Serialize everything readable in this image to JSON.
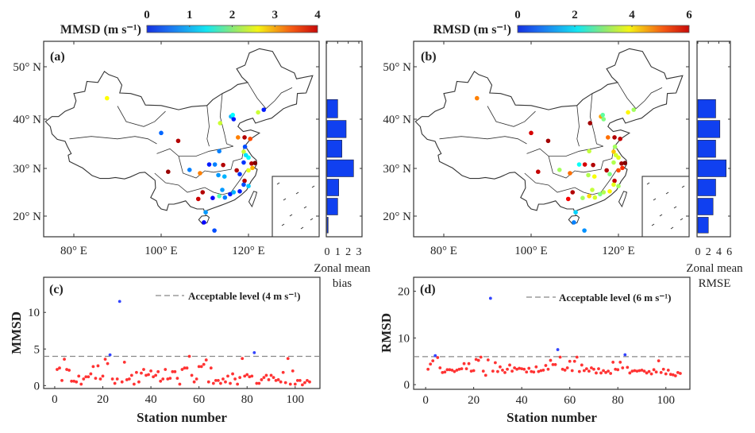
{
  "colors": {
    "outline": "#333333",
    "bar": "#1040f0",
    "below": "#ff3333",
    "above": "#3344ff",
    "threshold": "#888888"
  },
  "panels": {
    "a": {
      "label": "(a)",
      "colorbar_title": "MMSD (m s⁻¹)",
      "zonal_label1": "Zonal mean",
      "zonal_label2": "bias"
    },
    "b": {
      "label": "(b)",
      "colorbar_title": "RMSD (m s⁻¹)",
      "zonal_label1": "Zonal mean",
      "zonal_label2": "RMSE"
    },
    "c": {
      "label": "(c)",
      "ylabel": "MMSD",
      "xlabel": "Station number",
      "legend": "Acceptable level (4 m s⁻¹)"
    },
    "d": {
      "label": "(d)",
      "ylabel": "RMSD",
      "xlabel": "Station number",
      "legend": "Acceptable level (6 m s⁻¹)"
    }
  },
  "map_axes": {
    "lon_ticks": [
      {
        "value": 80,
        "label": "80° E"
      },
      {
        "value": 100,
        "label": "100° E"
      },
      {
        "value": 120,
        "label": "120° E"
      }
    ],
    "lat_ticks": [
      {
        "value": 50,
        "label": "50° N"
      },
      {
        "value": 40,
        "label": "40° N"
      },
      {
        "value": 30,
        "label": "30° N"
      },
      {
        "value": 20,
        "label": "20° N"
      }
    ]
  },
  "chart_data": [
    {
      "panel": "a",
      "type": "scatter",
      "kind": "station map",
      "colorbar": {
        "title": "MMSD (m s⁻¹)",
        "range": [
          0,
          4
        ],
        "ticks": [
          0,
          1,
          2,
          3,
          4
        ],
        "colormap": "jet"
      },
      "xlim": [
        73,
        136
      ],
      "ylim": [
        15,
        55
      ],
      "points_lon_lat_value": [
        [
          87.6,
          44.0,
          2.5
        ],
        [
          100.0,
          37.2,
          0.9
        ],
        [
          103.9,
          35.6,
          3.8
        ],
        [
          101.6,
          29.3,
          3.9
        ],
        [
          106.5,
          29.7,
          1.0
        ],
        [
          108.9,
          29.0,
          3.0
        ],
        [
          109.5,
          25.0,
          3.8
        ],
        [
          108.5,
          23.6,
          3.7
        ],
        [
          110.2,
          20.8,
          1.1
        ],
        [
          109.8,
          18.6,
          0.5
        ],
        [
          112.2,
          16.8,
          0.8
        ],
        [
          113.5,
          39.2,
          2.3
        ],
        [
          116.0,
          40.5,
          1.2
        ],
        [
          116.6,
          40.0,
          0.6
        ],
        [
          122.2,
          41.3,
          2.3
        ],
        [
          123.5,
          41.8,
          0.6
        ],
        [
          117.6,
          36.3,
          3.0
        ],
        [
          119.1,
          36.3,
          3.8
        ],
        [
          120.4,
          36.0,
          3.2
        ],
        [
          113.3,
          33.5,
          1.0
        ],
        [
          111.0,
          30.8,
          0.6
        ],
        [
          112.3,
          30.8,
          1.0
        ],
        [
          114.2,
          30.7,
          3.8
        ],
        [
          113.1,
          28.6,
          1.1
        ],
        [
          114.5,
          28.3,
          1.2
        ],
        [
          117.3,
          29.6,
          3.8
        ],
        [
          118.9,
          33.4,
          2.3
        ],
        [
          119.2,
          34.4,
          0.8
        ],
        [
          120.0,
          32.2,
          1.5
        ],
        [
          120.7,
          31.0,
          3.8
        ],
        [
          121.5,
          31.1,
          4.0
        ],
        [
          120.0,
          29.6,
          2.4
        ],
        [
          118.9,
          31.2,
          0.7
        ],
        [
          119.1,
          27.4,
          3.8
        ],
        [
          118.0,
          28.8,
          0.7
        ],
        [
          118.9,
          26.6,
          0.8
        ],
        [
          120.0,
          26.3,
          1.3
        ],
        [
          115.8,
          24.6,
          0.6
        ],
        [
          114.0,
          25.5,
          1.1
        ],
        [
          111.8,
          23.8,
          0.5
        ],
        [
          113.3,
          24.2,
          1.8
        ],
        [
          116.6,
          25.0,
          1.2
        ],
        [
          118.0,
          25.2,
          0.6
        ],
        [
          114.6,
          23.9,
          1.0
        ],
        [
          119.4,
          32.7,
          1.4
        ],
        [
          120.9,
          30.1,
          2.8
        ],
        [
          116.4,
          40.8,
          1.5
        ]
      ]
    },
    {
      "panel": "a",
      "type": "bar",
      "orientation": "horizontal",
      "xlabel": "Zonal mean bias",
      "categories": [
        "16-20°N",
        "20-24°N",
        "24-28°N",
        "28-32°N",
        "32-36°N",
        "36-40°N",
        "40-44°N"
      ],
      "bins": [
        [
          16,
          20
        ],
        [
          20,
          24
        ],
        [
          24,
          28
        ],
        [
          28,
          32
        ],
        [
          32,
          36
        ],
        [
          36,
          40
        ],
        [
          40,
          44
        ]
      ],
      "values": [
        0.1,
        1.0,
        1.1,
        2.5,
        1.4,
        1.8,
        1.0
      ],
      "xlim": [
        0,
        3.3
      ],
      "xticks": [
        0,
        1,
        2,
        3
      ]
    },
    {
      "panel": "b",
      "type": "scatter",
      "kind": "station map",
      "colorbar": {
        "title": "RMSD (m s⁻¹)",
        "range": [
          0,
          6
        ],
        "ticks": [
          0,
          2,
          4,
          6
        ],
        "colormap": "jet"
      },
      "xlim": [
        73,
        136
      ],
      "ylim": [
        15,
        55
      ],
      "points_lon_lat_value": [
        [
          87.6,
          44.0,
          4.5
        ],
        [
          100.0,
          37.2,
          5.5
        ],
        [
          103.9,
          35.6,
          5.8
        ],
        [
          101.6,
          29.3,
          5.6
        ],
        [
          106.5,
          29.7,
          3.2
        ],
        [
          108.9,
          29.0,
          4.6
        ],
        [
          109.5,
          25.0,
          5.7
        ],
        [
          108.5,
          23.6,
          5.3
        ],
        [
          110.2,
          20.8,
          2.0
        ],
        [
          109.8,
          18.6,
          1.5
        ],
        [
          112.2,
          16.8,
          1.6
        ],
        [
          113.5,
          39.2,
          5.8
        ],
        [
          116.0,
          40.5,
          4.3
        ],
        [
          116.6,
          40.0,
          3.0
        ],
        [
          122.2,
          41.3,
          3.8
        ],
        [
          123.5,
          41.8,
          3.2
        ],
        [
          117.6,
          36.3,
          4.6
        ],
        [
          119.1,
          36.3,
          5.7
        ],
        [
          120.4,
          36.0,
          5.6
        ],
        [
          113.3,
          33.5,
          3.4
        ],
        [
          111.0,
          30.8,
          2.3
        ],
        [
          112.3,
          30.8,
          5.5
        ],
        [
          114.2,
          30.7,
          5.7
        ],
        [
          113.1,
          28.6,
          3.3
        ],
        [
          114.5,
          28.3,
          3.7
        ],
        [
          117.3,
          29.6,
          5.7
        ],
        [
          118.9,
          33.4,
          4.1
        ],
        [
          119.2,
          34.4,
          3.2
        ],
        [
          120.0,
          32.2,
          3.6
        ],
        [
          120.7,
          31.0,
          5.8
        ],
        [
          121.5,
          31.1,
          6.0
        ],
        [
          120.0,
          29.6,
          4.8
        ],
        [
          118.9,
          31.2,
          3.3
        ],
        [
          119.1,
          27.4,
          5.6
        ],
        [
          118.0,
          28.8,
          3.0
        ],
        [
          118.9,
          26.6,
          3.6
        ],
        [
          120.0,
          26.3,
          3.2
        ],
        [
          115.8,
          24.6,
          3.0
        ],
        [
          114.0,
          25.5,
          3.4
        ],
        [
          111.8,
          23.8,
          3.2
        ],
        [
          113.3,
          24.2,
          4.0
        ],
        [
          116.6,
          25.0,
          3.3
        ],
        [
          118.0,
          25.2,
          3.8
        ],
        [
          114.6,
          23.9,
          3.5
        ],
        [
          119.4,
          32.7,
          3.5
        ],
        [
          120.9,
          30.1,
          5.0
        ],
        [
          116.4,
          40.8,
          2.8
        ]
      ]
    },
    {
      "panel": "b",
      "type": "bar",
      "orientation": "horizontal",
      "xlabel": "Zonal mean RMSE",
      "categories": [
        "16-20°N",
        "20-24°N",
        "24-28°N",
        "28-32°N",
        "32-36°N",
        "36-40°N",
        "40-44°N"
      ],
      "bins": [
        [
          16,
          20
        ],
        [
          20,
          24
        ],
        [
          24,
          28
        ],
        [
          28,
          32
        ],
        [
          32,
          36
        ],
        [
          36,
          40
        ],
        [
          40,
          44
        ]
      ],
      "values": [
        2.0,
        2.9,
        3.4,
        5.4,
        3.4,
        4.2,
        3.4
      ],
      "xlim": [
        0,
        6.2
      ],
      "xticks": [
        0,
        2,
        4,
        6
      ]
    },
    {
      "panel": "c",
      "type": "scatter",
      "xlabel": "Station number",
      "ylabel": "MMSD",
      "xlim": [
        -4.6,
        110.3
      ],
      "ylim": [
        -0.4,
        14.8
      ],
      "xticks": [
        0,
        20,
        40,
        60,
        80,
        100
      ],
      "yticks": [
        0,
        5,
        10
      ],
      "threshold": {
        "value": 4,
        "label": "Acceptable level (4 m s⁻¹)",
        "style": "dashed"
      },
      "legend": "top-right",
      "x_start": 1,
      "values": [
        2.2,
        2.4,
        0.7,
        3.6,
        2.2,
        2.1,
        0.6,
        0.6,
        0.5,
        1.3,
        0.2,
        0.9,
        1.2,
        1.2,
        1.6,
        2.6,
        1.0,
        2.7,
        0.9,
        1.3,
        3.6,
        3.0,
        4.2,
        0.9,
        0.3,
        0.9,
        11.5,
        0.5,
        3.2,
        0.8,
        0.9,
        1.4,
        0.2,
        1.8,
        0.5,
        1.7,
        2.2,
        1.4,
        1.5,
        2.0,
        1.2,
        1.4,
        1.9,
        0.6,
        0.9,
        2.2,
        0.9,
        1.0,
        1.9,
        1.9,
        1.0,
        0.2,
        2.2,
        2.4,
        2.4,
        4.0,
        1.4,
        0.5,
        0.9,
        2.6,
        2.6,
        2.9,
        3.5,
        0.5,
        2.4,
        0.3,
        0.7,
        0.7,
        0.3,
        0.9,
        0.5,
        1.3,
        0.3,
        1.6,
        0.9,
        0.2,
        1.1,
        3.7,
        1.3,
        1.5,
        1.2,
        1.3,
        4.5,
        0.3,
        0.3,
        0.8,
        1.1,
        1.4,
        0.8,
        1.4,
        1.1,
        0.7,
        0.8,
        0.5,
        1.8,
        0.4,
        3.7,
        0.2,
        2.0,
        0.2,
        0.7,
        0.7,
        0.1,
        0.4,
        0.7,
        0.5
      ]
    },
    {
      "panel": "d",
      "type": "scatter",
      "xlabel": "Station number",
      "ylabel": "RMSD",
      "xlim": [
        -5,
        110
      ],
      "ylim": [
        -1,
        23
      ],
      "xticks": [
        0,
        20,
        40,
        60,
        80,
        100
      ],
      "yticks": [
        0,
        10,
        20
      ],
      "threshold": {
        "value": 6,
        "label": "Acceptable level (6 m s⁻¹)",
        "style": "dashed"
      },
      "legend": "top-right",
      "x_start": 1,
      "values": [
        3.3,
        4.4,
        5.1,
        6.2,
        5.8,
        3.6,
        2.6,
        2.7,
        3.2,
        3.2,
        3.1,
        2.8,
        3.1,
        3.3,
        3.4,
        4.5,
        3.4,
        4.5,
        2.9,
        3.0,
        5.4,
        5.2,
        5.9,
        2.9,
        2.0,
        5.3,
        18.5,
        2.9,
        4.7,
        2.8,
        3.8,
        3.1,
        2.6,
        3.3,
        4.2,
        2.9,
        3.6,
        3.3,
        3.5,
        3.4,
        3.3,
        2.7,
        3.5,
        2.8,
        2.7,
        3.8,
        2.8,
        3.0,
        3.1,
        4.1,
        3.3,
        5.2,
        4.3,
        4.3,
        7.5,
        5.9,
        3.3,
        3.1,
        3.6,
        5.0,
        3.0,
        5.0,
        5.9,
        2.8,
        4.2,
        3.0,
        3.4,
        2.9,
        3.6,
        3.3,
        2.5,
        3.4,
        2.5,
        3.0,
        2.6,
        2.9,
        2.4,
        4.8,
        3.3,
        3.2,
        4.8,
        3.6,
        6.4,
        3.7,
        2.5,
        2.9,
        3.0,
        2.9,
        3.0,
        3.1,
        2.9,
        2.5,
        2.8,
        2.3,
        3.2,
        2.7,
        5.1,
        2.6,
        3.3,
        2.3,
        3.1,
        2.2,
        2.1,
        1.9,
        2.6,
        2.4
      ]
    }
  ]
}
